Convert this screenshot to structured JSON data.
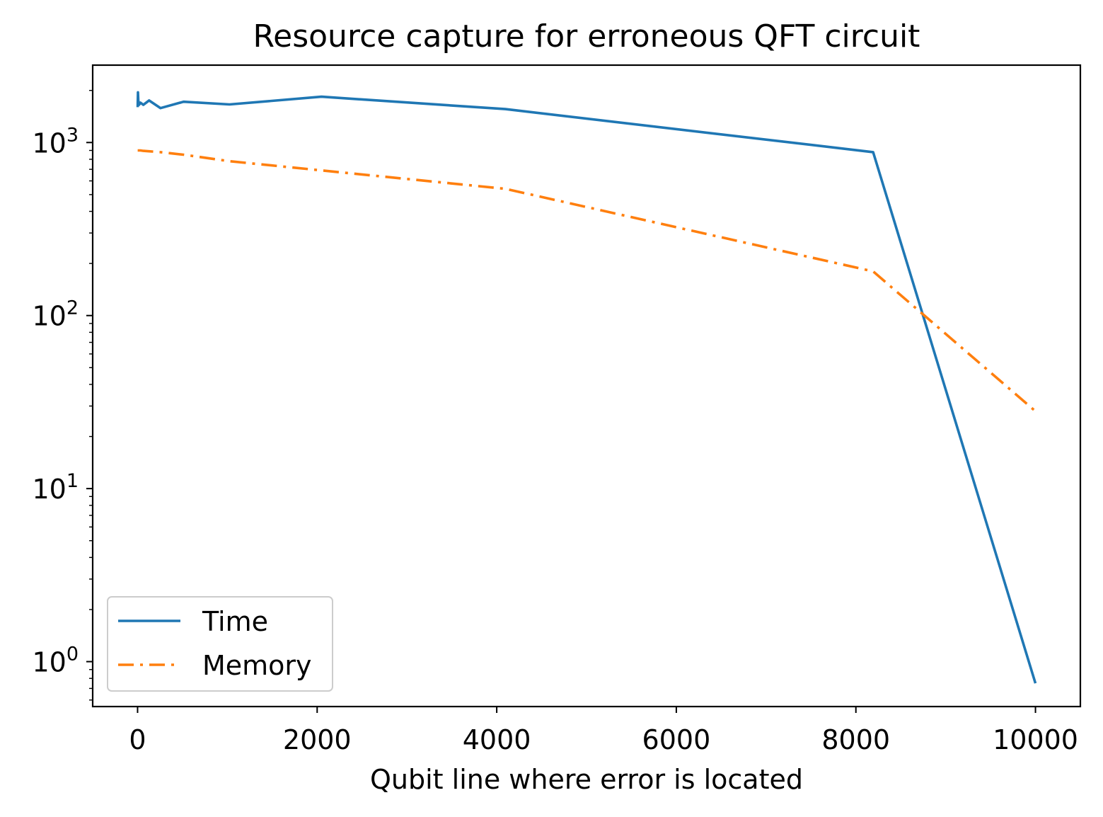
{
  "chart_data": {
    "type": "line",
    "title": "Resource capture for erroneous QFT circuit",
    "xlabel": "Qubit line where error is located",
    "ylabel": "",
    "yscale": "log",
    "xlim": [
      -500,
      10500
    ],
    "ylim": [
      0.55,
      2800
    ],
    "xticks": [
      0,
      2000,
      4000,
      6000,
      8000,
      10000
    ],
    "xtick_labels": [
      "0",
      "2000",
      "4000",
      "6000",
      "8000",
      "10000"
    ],
    "yticks": [
      {
        "value": 1,
        "base": "10",
        "exp": "0"
      },
      {
        "value": 10,
        "base": "10",
        "exp": "1"
      },
      {
        "value": 100,
        "base": "10",
        "exp": "2"
      },
      {
        "value": 1000,
        "base": "10",
        "exp": "3"
      }
    ],
    "legend_position": "lower-left",
    "series": [
      {
        "name": "Time",
        "color": "#1f77b4",
        "style": "solid",
        "x": [
          1,
          2,
          4,
          8,
          16,
          32,
          64,
          128,
          256,
          512,
          1024,
          2048,
          4096,
          8192,
          10000
        ],
        "y": [
          1600,
          1700,
          1950,
          1750,
          1650,
          1700,
          1650,
          1750,
          1580,
          1720,
          1660,
          1840,
          1560,
          880,
          0.75
        ]
      },
      {
        "name": "Memory",
        "color": "#ff7f0e",
        "style": "dashdot",
        "x": [
          1,
          2,
          4,
          8,
          16,
          32,
          64,
          128,
          256,
          512,
          1024,
          2048,
          4096,
          8192,
          10000
        ],
        "y": [
          900,
          900,
          900,
          900,
          900,
          900,
          895,
          890,
          880,
          850,
          780,
          690,
          540,
          180,
          28
        ]
      }
    ]
  }
}
